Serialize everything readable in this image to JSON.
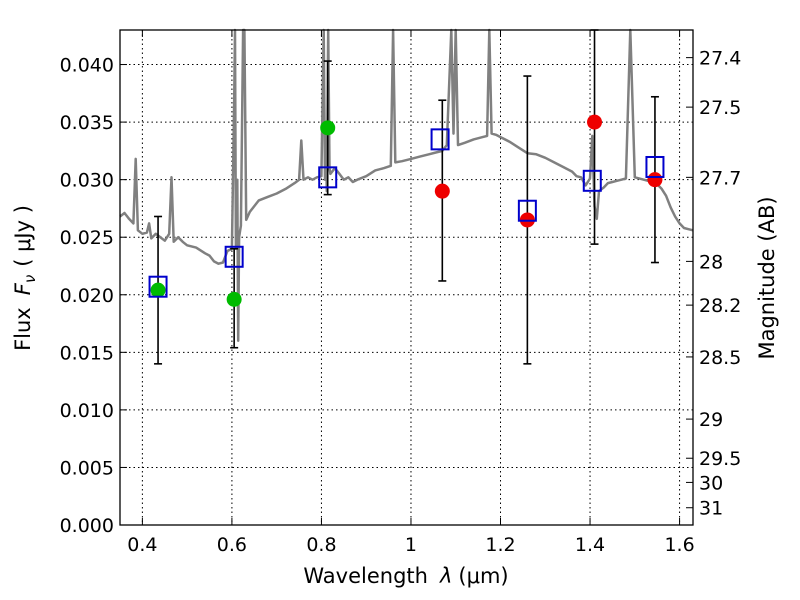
{
  "chart_data": {
    "type": "scatter",
    "title": "",
    "xlabel": "Wavelength",
    "xlabel_symbol": "λ",
    "xlabel_unit": "(μm)",
    "ylabel": "Flux",
    "ylabel_symbol": "F",
    "ylabel_sub": "ν",
    "ylabel_unit": "( μJy )",
    "y2label": "Magnitude (AB)",
    "xlim": [
      0.35,
      1.63
    ],
    "ylim": [
      0.0,
      0.043
    ],
    "grid": true,
    "xticks": [
      0.4,
      0.6,
      0.8,
      1.0,
      1.2,
      1.4,
      1.6
    ],
    "xtick_labels": [
      "0.4",
      "0.6",
      "0.8",
      "1",
      "1.2",
      "1.4",
      "1.6"
    ],
    "yticks": [
      0.0,
      0.005,
      0.01,
      0.015,
      0.02,
      0.025,
      0.03,
      0.035,
      0.04
    ],
    "ytick_labels": [
      "0.000",
      "0.005",
      "0.010",
      "0.015",
      "0.020",
      "0.025",
      "0.030",
      "0.035",
      "0.040"
    ],
    "y2ticks": [
      {
        "flux": 0.0406,
        "label": "27.4"
      },
      {
        "flux": 0.0363,
        "label": "27.5"
      },
      {
        "flux": 0.0302,
        "label": "27.7"
      },
      {
        "flux": 0.0229,
        "label": "28"
      },
      {
        "flux": 0.0191,
        "label": "28.2"
      },
      {
        "flux": 0.0146,
        "label": "28.5"
      },
      {
        "flux": 0.0092,
        "label": "29"
      },
      {
        "flux": 0.0058,
        "label": "29.5"
      },
      {
        "flux": 0.0037,
        "label": "30"
      },
      {
        "flux": 0.0015,
        "label": "31"
      }
    ],
    "series": [
      {
        "kind": "line",
        "color": "#808080",
        "points": [
          [
            0.35,
            0.0268
          ],
          [
            0.36,
            0.0271
          ],
          [
            0.37,
            0.0266
          ],
          [
            0.38,
            0.0262
          ],
          [
            0.385,
            0.0318
          ],
          [
            0.39,
            0.0256
          ],
          [
            0.4,
            0.0253
          ],
          [
            0.41,
            0.0254
          ],
          [
            0.415,
            0.0262
          ],
          [
            0.42,
            0.0249
          ],
          [
            0.43,
            0.0253
          ],
          [
            0.44,
            0.025
          ],
          [
            0.45,
            0.0247
          ],
          [
            0.46,
            0.0253
          ],
          [
            0.465,
            0.0302
          ],
          [
            0.47,
            0.0246
          ],
          [
            0.48,
            0.025
          ],
          [
            0.49,
            0.0246
          ],
          [
            0.5,
            0.0243
          ],
          [
            0.52,
            0.0241
          ],
          [
            0.54,
            0.0236
          ],
          [
            0.55,
            0.0234
          ],
          [
            0.56,
            0.0229
          ],
          [
            0.57,
            0.0227
          ],
          [
            0.58,
            0.0228
          ],
          [
            0.59,
            0.0238
          ],
          [
            0.6,
            0.024
          ],
          [
            0.605,
            0.037
          ],
          [
            0.607,
            0.043
          ],
          [
            0.609,
            0.024
          ],
          [
            0.612,
            0.03
          ],
          [
            0.614,
            0.016
          ],
          [
            0.616,
            0.025
          ],
          [
            0.62,
            0.026
          ],
          [
            0.625,
            0.043
          ],
          [
            0.628,
            0.043
          ],
          [
            0.632,
            0.0265
          ],
          [
            0.64,
            0.0272
          ],
          [
            0.66,
            0.0282
          ],
          [
            0.68,
            0.0285
          ],
          [
            0.7,
            0.0288
          ],
          [
            0.72,
            0.0292
          ],
          [
            0.74,
            0.0297
          ],
          [
            0.75,
            0.03
          ],
          [
            0.755,
            0.0334
          ],
          [
            0.76,
            0.03
          ],
          [
            0.77,
            0.0302
          ],
          [
            0.78,
            0.03
          ],
          [
            0.79,
            0.0302
          ],
          [
            0.8,
            0.0303
          ],
          [
            0.805,
            0.043
          ],
          [
            0.808,
            0.03
          ],
          [
            0.81,
            0.034
          ],
          [
            0.812,
            0.029
          ],
          [
            0.815,
            0.043
          ],
          [
            0.818,
            0.031
          ],
          [
            0.82,
            0.0305
          ],
          [
            0.83,
            0.031
          ],
          [
            0.84,
            0.0305
          ],
          [
            0.85,
            0.03
          ],
          [
            0.86,
            0.0302
          ],
          [
            0.87,
            0.0298
          ],
          [
            0.88,
            0.03
          ],
          [
            0.9,
            0.0303
          ],
          [
            0.92,
            0.0308
          ],
          [
            0.94,
            0.031
          ],
          [
            0.955,
            0.0312
          ],
          [
            0.96,
            0.043
          ],
          [
            0.965,
            0.0315
          ],
          [
            0.98,
            0.0316
          ],
          [
            1.0,
            0.0318
          ],
          [
            1.02,
            0.032
          ],
          [
            1.04,
            0.0322
          ],
          [
            1.06,
            0.0324
          ],
          [
            1.07,
            0.0325
          ],
          [
            1.08,
            0.033
          ],
          [
            1.09,
            0.043
          ],
          [
            1.095,
            0.034
          ],
          [
            1.1,
            0.043
          ],
          [
            1.105,
            0.033
          ],
          [
            1.12,
            0.0332
          ],
          [
            1.14,
            0.0335
          ],
          [
            1.16,
            0.0337
          ],
          [
            1.17,
            0.0338
          ],
          [
            1.175,
            0.043
          ],
          [
            1.18,
            0.034
          ],
          [
            1.19,
            0.0339
          ],
          [
            1.2,
            0.0337
          ],
          [
            1.22,
            0.0333
          ],
          [
            1.24,
            0.0328
          ],
          [
            1.26,
            0.0323
          ],
          [
            1.28,
            0.0322
          ],
          [
            1.3,
            0.0319
          ],
          [
            1.32,
            0.0315
          ],
          [
            1.34,
            0.0311
          ],
          [
            1.36,
            0.0307
          ],
          [
            1.37,
            0.0303
          ],
          [
            1.38,
            0.0302
          ],
          [
            1.39,
            0.0295
          ],
          [
            1.4,
            0.0301
          ],
          [
            1.405,
            0.0338
          ],
          [
            1.41,
            0.0277
          ],
          [
            1.415,
            0.0266
          ],
          [
            1.42,
            0.029
          ],
          [
            1.43,
            0.0293
          ],
          [
            1.44,
            0.0297
          ],
          [
            1.45,
            0.0298
          ],
          [
            1.46,
            0.0299
          ],
          [
            1.47,
            0.03
          ],
          [
            1.48,
            0.0301
          ],
          [
            1.49,
            0.043
          ],
          [
            1.5,
            0.0302
          ],
          [
            1.52,
            0.03
          ],
          [
            1.54,
            0.0298
          ],
          [
            1.55,
            0.0296
          ],
          [
            1.56,
            0.0292
          ],
          [
            1.57,
            0.0286
          ],
          [
            1.58,
            0.0276
          ],
          [
            1.59,
            0.0268
          ],
          [
            1.6,
            0.0262
          ],
          [
            1.61,
            0.0258
          ],
          [
            1.62,
            0.0257
          ],
          [
            1.63,
            0.0256
          ]
        ]
      },
      {
        "kind": "errorbar",
        "color": "#000000",
        "points": [
          {
            "x": 0.435,
            "lo": 0.014,
            "hi": 0.0268
          },
          {
            "x": 0.605,
            "lo": 0.0154,
            "hi": 0.024
          },
          {
            "x": 0.814,
            "lo": 0.0287,
            "hi": 0.0403
          },
          {
            "x": 1.07,
            "lo": 0.0212,
            "hi": 0.0369
          },
          {
            "x": 1.26,
            "lo": 0.014,
            "hi": 0.039
          },
          {
            "x": 1.41,
            "lo": 0.0244,
            "hi": 0.043
          },
          {
            "x": 1.545,
            "lo": 0.0228,
            "hi": 0.0372
          }
        ]
      },
      {
        "kind": "circle",
        "color": "#00bb00",
        "points": [
          [
            0.435,
            0.0204
          ],
          [
            0.605,
            0.0196
          ],
          [
            0.814,
            0.0345
          ]
        ]
      },
      {
        "kind": "circle",
        "color": "#ee0000",
        "points": [
          [
            1.07,
            0.029
          ],
          [
            1.26,
            0.0265
          ],
          [
            1.41,
            0.035
          ],
          [
            1.545,
            0.03
          ]
        ]
      },
      {
        "kind": "square",
        "color": "#0000cc",
        "points": [
          [
            0.435,
            0.0207
          ],
          [
            0.605,
            0.0233
          ],
          [
            0.814,
            0.0302
          ],
          [
            1.065,
            0.0335
          ],
          [
            1.26,
            0.0273
          ],
          [
            1.405,
            0.0299
          ],
          [
            1.545,
            0.0311
          ]
        ]
      }
    ]
  }
}
